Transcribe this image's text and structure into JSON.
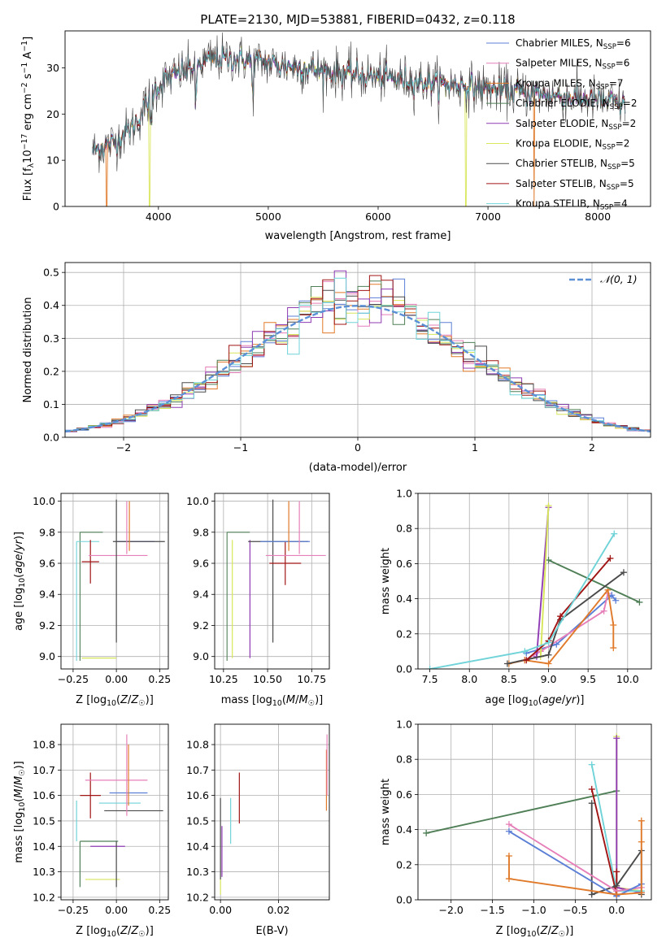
{
  "title": "PLATE=2130, MJD=53881, FIBERID=0432, z=0.118",
  "colors": {
    "Chabrier MILES": "#5b7fd6",
    "Salpeter MILES": "#e67fb9",
    "Kroupa MILES": "#e07a2a",
    "Chabrier ELODIE": "#4f7f56",
    "Salpeter ELODIE": "#8f3bb4",
    "Kroupa ELODIE": "#d8e65a",
    "Chabrier STELIB": "#4a4a4a",
    "Salpeter STELIB": "#a01414",
    "Kroupa STELIB": "#6fd3d8",
    "gaussian": "#5b8fd6",
    "grid": "#b0b0b0"
  },
  "chart_data": [
    {
      "type": "line",
      "panel": "spectrum",
      "xlabel": "wavelength [Angstrom, rest frame]",
      "ylabel": "Flux [f_λ 10^-17 erg cm^-2 s^-1 A^-1]",
      "xlim": [
        3150,
        8480
      ],
      "ylim": [
        0,
        38
      ],
      "xticks": [
        "4000",
        "5000",
        "6000",
        "7000",
        "8000"
      ],
      "yticks": [
        "0",
        "10",
        "20",
        "30"
      ],
      "grid": false,
      "legend_position": "top-right",
      "legend": [
        {
          "prefix": "Chabrier MILES, N",
          "sub": "SSP",
          "suffix": "=6"
        },
        {
          "prefix": "Salpeter MILES, N",
          "sub": "SSP",
          "suffix": "=6"
        },
        {
          "prefix": "Kroupa MILES, N",
          "sub": "SSP",
          "suffix": "=7"
        },
        {
          "prefix": "Chabrier ELODIE, N",
          "sub": "SSP",
          "suffix": "=2"
        },
        {
          "prefix": "Salpeter ELODIE, N",
          "sub": "SSP",
          "suffix": "=2"
        },
        {
          "prefix": "Kroupa ELODIE, N",
          "sub": "SSP",
          "suffix": "=2"
        },
        {
          "prefix": "Chabrier STELIB, N",
          "sub": "SSP",
          "suffix": "=5"
        },
        {
          "prefix": "Salpeter STELIB, N",
          "sub": "SSP",
          "suffix": "=5"
        },
        {
          "prefix": "Kroupa STELIB, N",
          "sub": "SSP",
          "suffix": "=4"
        }
      ],
      "continuum": {
        "x": [
          3400,
          3600,
          3800,
          3950,
          4100,
          4300,
          4500,
          4700,
          5000,
          5300,
          5600,
          6000,
          6400,
          6800,
          7200,
          7600,
          8000,
          8250
        ],
        "y": [
          12,
          14,
          18,
          25,
          28,
          30,
          32,
          32,
          31,
          30,
          29,
          28,
          27,
          26,
          25,
          24,
          23,
          22
        ]
      },
      "dropouts": [
        {
          "series": "Kroupa MILES",
          "x": 3530
        },
        {
          "series": "Kroupa ELODIE",
          "x": 3920
        },
        {
          "series": "Kroupa ELODIE",
          "x": 6800
        },
        {
          "series": "Kroupa MILES",
          "x": 7420
        }
      ]
    },
    {
      "type": "line",
      "panel": "residual_histogram",
      "xlabel": "(data-model)/error",
      "ylabel": "Normed distribution",
      "xlim": [
        -2.5,
        2.5
      ],
      "ylim": [
        0,
        0.53
      ],
      "xticks": [
        "−2",
        "−1",
        "0",
        "1",
        "2"
      ],
      "yticks": [
        "0.0",
        "0.1",
        "0.2",
        "0.3",
        "0.4",
        "0.5"
      ],
      "grid": true,
      "bin_width": 0.1,
      "legend": [
        {
          "name": "𝒩(0, 1)",
          "style": "dashed"
        }
      ],
      "gaussian": {
        "mean": 0,
        "sigma": 1
      }
    },
    {
      "type": "scatter",
      "panel": "age_vs_Z",
      "xlabel": "Z [log10(Z/Z☉)]",
      "ylabel": "age [log10(age/yr)]",
      "xlim": [
        -0.32,
        0.3
      ],
      "ylim": [
        8.92,
        10.05
      ],
      "xticks": [
        "−0.25",
        "0.00",
        "0.25"
      ],
      "yticks": [
        "9.0",
        "9.2",
        "9.4",
        "9.6",
        "9.8",
        "10.0"
      ],
      "grid": true,
      "points": [
        {
          "series": "Chabrier ELODIE",
          "x": -0.21,
          "xerr": 0.0,
          "y": 9.8,
          "yerr": 0.0
        },
        {
          "series": "Kroupa STELIB",
          "x": -0.23,
          "xerr": 0.0,
          "y": 9.74,
          "yerr": 0.0
        },
        {
          "series": "Salpeter STELIB",
          "x": -0.15,
          "xerr": 0.05,
          "y": 9.61,
          "yerr": 0.14
        },
        {
          "series": "Salpeter MILES",
          "x": 0.01,
          "xerr": 0.17,
          "y": 9.65,
          "yerr": 0.0
        },
        {
          "series": "Chabrier STELIB",
          "x": 0.0,
          "xerr": 0.0,
          "y": 9.55,
          "yerr": 0.46
        },
        {
          "series": "Chabrier MILES",
          "x": 0.11,
          "xerr": 0.11,
          "y": 9.74,
          "yerr": 0.0
        },
        {
          "series": "Chabrier STELIB",
          "x": 0.13,
          "xerr": 0.15,
          "y": 9.74,
          "yerr": 0.0
        },
        {
          "series": "Kroupa MILES",
          "x": 0.075,
          "xerr": 0.0,
          "y": 9.84,
          "yerr": 0.16
        },
        {
          "series": "Salpeter MILES",
          "x": 0.06,
          "xerr": 0.0,
          "y": 9.83,
          "yerr": 0.17
        },
        {
          "series": "Kroupa ELODIE",
          "x": -0.1,
          "xerr": 0.1,
          "y": 8.99,
          "yerr": 0.0
        }
      ]
    },
    {
      "type": "scatter",
      "panel": "age_vs_mass",
      "xlabel": "mass [log10(M/M☉)]",
      "ylabel": "",
      "xlim": [
        10.2,
        10.85
      ],
      "ylim": [
        8.92,
        10.05
      ],
      "xticks": [
        "10.25",
        "10.50",
        "10.75"
      ],
      "yticks": [
        "9.0",
        "9.2",
        "9.4",
        "9.6",
        "9.8",
        "10.0"
      ],
      "grid": true,
      "points": [
        {
          "series": "Chabrier ELODIE",
          "x": 10.27,
          "xerr": 0.0,
          "y": 9.8,
          "yerr": 0.0
        },
        {
          "series": "Kroupa ELODIE",
          "x": 10.3,
          "xerr": 0.0,
          "y": 9.37,
          "yerr": 0.38
        },
        {
          "series": "Salpeter ELODIE",
          "x": 10.4,
          "xerr": 0.0,
          "y": 9.37,
          "yerr": 0.38
        },
        {
          "series": "Chabrier STELIB",
          "x": 10.53,
          "xerr": 0.0,
          "y": 9.55,
          "yerr": 0.46
        },
        {
          "series": "Salpeter STELIB",
          "x": 10.6,
          "xerr": 0.09,
          "y": 9.6,
          "yerr": 0.14
        },
        {
          "series": "Chabrier STELIB",
          "x": 10.56,
          "xerr": 0.17,
          "y": 9.74,
          "yerr": 0.0
        },
        {
          "series": "Chabrier MILES",
          "x": 10.6,
          "xerr": 0.14,
          "y": 9.74,
          "yerr": 0.0
        },
        {
          "series": "Salpeter MILES",
          "x": 10.66,
          "xerr": 0.17,
          "y": 9.65,
          "yerr": 0.0
        },
        {
          "series": "Kroupa MILES",
          "x": 10.62,
          "xerr": 0.0,
          "y": 9.84,
          "yerr": 0.16
        },
        {
          "series": "Salpeter MILES",
          "x": 10.68,
          "xerr": 0.0,
          "y": 9.83,
          "yerr": 0.17
        }
      ]
    },
    {
      "type": "line",
      "panel": "mass_weight_vs_age",
      "xlabel": "age [log10(age/yr)]",
      "ylabel": "mass weight",
      "xlim": [
        7.35,
        10.3
      ],
      "ylim": [
        0,
        1
      ],
      "xticks": [
        "7.5",
        "8.0",
        "8.5",
        "9.0",
        "9.5",
        "10.0"
      ],
      "yticks": [
        "0.0",
        "0.2",
        "0.4",
        "0.6",
        "0.8",
        "1.0"
      ],
      "grid": true,
      "series": [
        {
          "name": "Chabrier MILES",
          "x": [
            8.72,
            9.1,
            9.8,
            9.85
          ],
          "y": [
            0.09,
            0.14,
            0.42,
            0.39
          ]
        },
        {
          "name": "Salpeter MILES",
          "x": [
            8.7,
            8.9,
            9.7,
            9.75
          ],
          "y": [
            0.05,
            0.1,
            0.33,
            0.43
          ]
        },
        {
          "name": "Kroupa MILES",
          "x": [
            8.5,
            8.7,
            9.0,
            9.75,
            9.82,
            9.82
          ],
          "y": [
            0.03,
            0.05,
            0.03,
            0.45,
            0.25,
            0.12
          ]
        },
        {
          "name": "Chabrier ELODIE",
          "x": [
            9.0,
            10.15
          ],
          "y": [
            0.62,
            0.38
          ]
        },
        {
          "name": "Salpeter ELODIE",
          "x": [
            8.85,
            9.0
          ],
          "y": [
            0.07,
            0.92
          ]
        },
        {
          "name": "Kroupa ELODIE",
          "x": [
            8.9,
            9.0
          ],
          "y": [
            0.07,
            0.93
          ]
        },
        {
          "name": "Chabrier STELIB",
          "x": [
            8.48,
            9.0,
            9.15,
            9.95
          ],
          "y": [
            0.03,
            0.08,
            0.28,
            0.55
          ]
        },
        {
          "name": "Salpeter STELIB",
          "x": [
            8.72,
            9.0,
            9.15,
            9.78
          ],
          "y": [
            0.05,
            0.16,
            0.3,
            0.63
          ]
        },
        {
          "name": "Kroupa STELIB",
          "x": [
            7.5,
            8.7,
            9.0,
            9.83
          ],
          "y": [
            0.0,
            0.1,
            0.15,
            0.77
          ]
        }
      ]
    },
    {
      "type": "scatter",
      "panel": "mass_vs_Z",
      "xlabel": "Z [log10(Z/Z☉)]",
      "ylabel": "mass [log10(M/M☉)]",
      "xlim": [
        -0.32,
        0.3
      ],
      "ylim": [
        10.19,
        10.88
      ],
      "xticks": [
        "−0.25",
        "0.00",
        "0.25"
      ],
      "yticks": [
        "10.2",
        "10.3",
        "10.4",
        "10.5",
        "10.6",
        "10.7",
        "10.8"
      ],
      "grid": true,
      "points": [
        {
          "series": "Kroupa STELIB",
          "x": -0.23,
          "xerr": 0.0,
          "y": 10.5,
          "yerr": 0.08
        },
        {
          "series": "Chabrier ELODIE",
          "x": -0.21,
          "xerr": 0.0,
          "y": 10.33,
          "yerr": 0.09
        },
        {
          "series": "Chabrier ELODIE",
          "x": -0.1,
          "xerr": 0.11,
          "y": 10.42,
          "yerr": 0.0
        },
        {
          "series": "Salpeter ELODIE",
          "x": -0.05,
          "xerr": 0.1,
          "y": 10.4,
          "yerr": 0.0
        },
        {
          "series": "Kroupa ELODIE",
          "x": -0.08,
          "xerr": 0.1,
          "y": 10.27,
          "yerr": 0.0
        },
        {
          "series": "Salpeter STELIB",
          "x": -0.15,
          "xerr": 0.06,
          "y": 10.6,
          "yerr": 0.09
        },
        {
          "series": "Salpeter MILES",
          "x": 0.0,
          "xerr": 0.18,
          "y": 10.66,
          "yerr": 0.0
        },
        {
          "series": "Kroupa STELIB",
          "x": 0.02,
          "xerr": 0.12,
          "y": 10.57,
          "yerr": 0.0
        },
        {
          "series": "Chabrier MILES",
          "x": 0.07,
          "xerr": 0.11,
          "y": 10.61,
          "yerr": 0.0
        },
        {
          "series": "Chabrier STELIB",
          "x": 0.1,
          "xerr": 0.17,
          "y": 10.54,
          "yerr": 0.0
        },
        {
          "series": "Chabrier STELIB",
          "x": 0.0,
          "xerr": 0.0,
          "y": 10.33,
          "yerr": 0.09
        },
        {
          "series": "Salpeter MILES",
          "x": 0.06,
          "xerr": 0.0,
          "y": 10.68,
          "yerr": 0.16
        },
        {
          "series": "Kroupa MILES",
          "x": 0.07,
          "xerr": 0.0,
          "y": 10.68,
          "yerr": 0.12
        }
      ]
    },
    {
      "type": "scatter",
      "panel": "mass_vs_EBV",
      "xlabel": "E(B-V)",
      "ylabel": "",
      "xlim": [
        -0.002,
        0.0375
      ],
      "ylim": [
        10.19,
        10.88
      ],
      "xticks": [
        "0.00",
        "0.02"
      ],
      "yticks": [
        "10.2",
        "10.3",
        "10.4",
        "10.5",
        "10.6",
        "10.7",
        "10.8"
      ],
      "grid": true,
      "points": [
        {
          "series": "Kroupa ELODIE",
          "x": 0.0,
          "xerr": 0.0,
          "y": 10.24,
          "yerr": 0.03
        },
        {
          "series": "Chabrier STELIB",
          "x": 0.0,
          "xerr": 0.0,
          "y": 10.43,
          "yerr": 0.16
        },
        {
          "series": "Salpeter ELODIE",
          "x": 0.0005,
          "xerr": 0.0,
          "y": 10.38,
          "yerr": 0.1
        },
        {
          "series": "Kroupa STELIB",
          "x": 0.0035,
          "xerr": 0.0,
          "y": 10.5,
          "yerr": 0.09
        },
        {
          "series": "Salpeter STELIB",
          "x": 0.0065,
          "xerr": 0.0,
          "y": 10.59,
          "yerr": 0.1
        },
        {
          "series": "Kroupa MILES",
          "x": 0.0365,
          "xerr": 0.0,
          "y": 10.66,
          "yerr": 0.12
        },
        {
          "series": "Salpeter MILES",
          "x": 0.0367,
          "xerr": 0.0,
          "y": 10.72,
          "yerr": 0.12
        }
      ]
    },
    {
      "type": "line",
      "panel": "mass_weight_vs_Z",
      "xlabel": "Z [log10(Z/Z☉)]",
      "ylabel": "mass weight",
      "xlim": [
        -2.4,
        0.42
      ],
      "ylim": [
        0,
        1
      ],
      "xticks": [
        "−2.0",
        "−1.5",
        "−1.0",
        "−0.5",
        "0.0"
      ],
      "yticks": [
        "0.0",
        "0.2",
        "0.4",
        "0.6",
        "0.8",
        "1.0"
      ],
      "grid": true,
      "series": [
        {
          "name": "Chabrier ELODIE",
          "x": [
            -2.3,
            0.0
          ],
          "y": [
            0.38,
            0.62
          ]
        },
        {
          "name": "Kroupa ELODIE",
          "x": [
            0.0,
            0.0,
            0.3
          ],
          "y": [
            0.93,
            0.07,
            0.05
          ]
        },
        {
          "name": "Salpeter ELODIE",
          "x": [
            0.0,
            0.0,
            0.3
          ],
          "y": [
            0.92,
            0.07,
            0.04
          ]
        },
        {
          "name": "Kroupa STELIB",
          "x": [
            -0.3,
            0.0,
            0.3
          ],
          "y": [
            0.77,
            0.05,
            0.05
          ]
        },
        {
          "name": "Salpeter STELIB",
          "x": [
            -0.3,
            0.0,
            0.0
          ],
          "y": [
            0.63,
            0.03,
            0.16
          ]
        },
        {
          "name": "Chabrier STELIB",
          "x": [
            -0.3,
            -0.3,
            0.0,
            0.3,
            0.3
          ],
          "y": [
            0.55,
            0.03,
            0.08,
            0.28,
            0.03
          ]
        },
        {
          "name": "Salpeter MILES",
          "x": [
            -1.3,
            0.0,
            0.3
          ],
          "y": [
            0.43,
            0.05,
            0.07
          ]
        },
        {
          "name": "Chabrier MILES",
          "x": [
            -1.3,
            0.0,
            0.3
          ],
          "y": [
            0.39,
            0.02,
            0.09
          ]
        },
        {
          "name": "Kroupa MILES",
          "x": [
            -1.3,
            -1.3,
            0.0,
            0.3,
            0.3,
            0.3
          ],
          "y": [
            0.25,
            0.12,
            0.03,
            0.04,
            0.45,
            0.33
          ]
        }
      ]
    }
  ]
}
